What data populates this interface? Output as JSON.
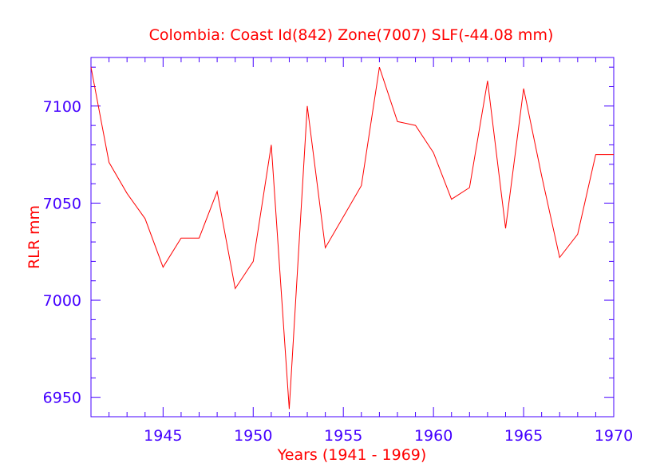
{
  "chart_data": {
    "type": "line",
    "title": "Colombia:  Coast Id(842) Zone(7007) SLF(-44.08 mm)",
    "xlabel": "Years (1941 - 1969)",
    "ylabel": "RLR mm",
    "xlim": [
      1941,
      1970
    ],
    "ylim": [
      6940,
      7125
    ],
    "x_ticks": [
      1945,
      1950,
      1955,
      1960,
      1965,
      1970
    ],
    "y_ticks": [
      6950,
      7000,
      7050,
      7100
    ],
    "x_minor_step": 1,
    "y_minor_step": 10,
    "grid": false,
    "colors": {
      "series": "#ff0000",
      "axes": "#4400ff",
      "text": "#ff0000"
    },
    "x": [
      1941,
      1942,
      1943,
      1944,
      1945,
      1946,
      1947,
      1948,
      1949,
      1950,
      1951,
      1952,
      1953,
      1954,
      1955,
      1956,
      1957,
      1958,
      1959,
      1960,
      1961,
      1962,
      1963,
      1964,
      1965,
      1966,
      1967,
      1968,
      1969,
      1970
    ],
    "values": [
      7120,
      7071,
      7055,
      7042,
      7017,
      7032,
      7032,
      7056,
      7006,
      7020,
      7080,
      6944,
      7100,
      7027,
      7043,
      7059,
      7120,
      7092,
      7090,
      7076,
      7052,
      7058,
      7113,
      7037,
      7109,
      7064,
      7022,
      7034,
      7075,
      7075
    ]
  }
}
